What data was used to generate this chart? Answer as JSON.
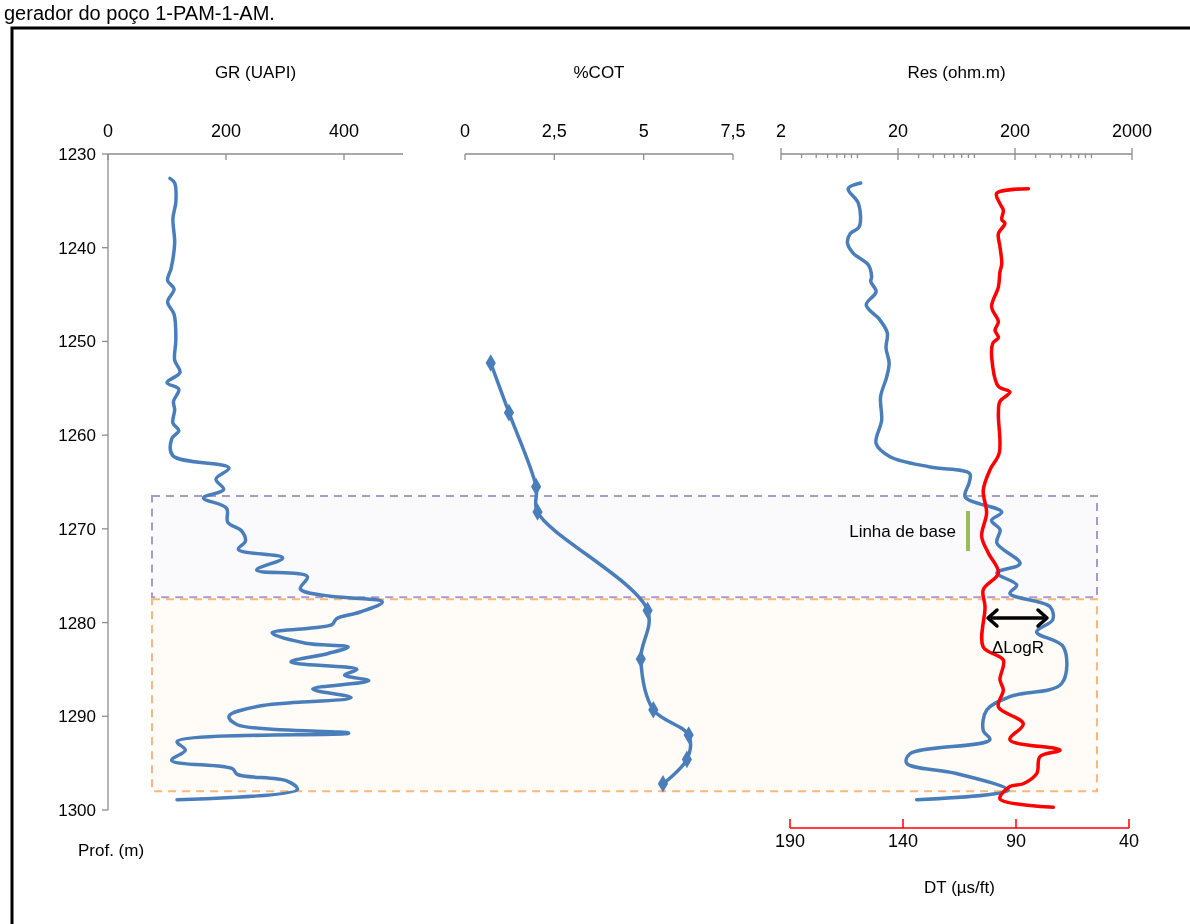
{
  "chart_data": [
    {
      "type": "line",
      "title": "gerador do poço 1-PAM-1-AM.",
      "xlabel": "GR (UAPI)",
      "ylabel": "Prof. (m)",
      "xlim": [
        0,
        500
      ],
      "xticks": [
        0,
        200,
        400
      ],
      "ylim": [
        1300,
        1230
      ],
      "yticks": [
        1230,
        1240,
        1250,
        1260,
        1270,
        1280,
        1290,
        1300
      ],
      "line_style": "solid",
      "series": [
        {
          "color": "#4a7ebb",
          "x": [
            105,
            113,
            115,
            110,
            113,
            107,
            101,
            112,
            101,
            112,
            115,
            113,
            122,
            100,
            120,
            111,
            113,
            110,
            120,
            108,
            110,
            205,
            183,
            196,
            162,
            201,
            203,
            226,
            233,
            221,
            296,
            252,
            338,
            326,
            366,
            465,
            426,
            387,
            380,
            278,
            335,
            407,
            373,
            310,
            422,
            401,
            442,
            347,
            412,
            257,
            205,
            219,
            408,
            117,
            131,
            108,
            211,
            219,
            303,
            321,
            117
          ],
          "values": [
            1232.6,
            1233.1,
            1235.1,
            1236.9,
            1239.5,
            1242.2,
            1243.5,
            1244.4,
            1245.8,
            1247.1,
            1249.8,
            1252.0,
            1253.3,
            1254.4,
            1255.1,
            1256.4,
            1257.3,
            1258.7,
            1259.5,
            1260.4,
            1262.2,
            1263.5,
            1264.7,
            1265.8,
            1266.7,
            1267.8,
            1269.3,
            1270.2,
            1271.3,
            1272.2,
            1273.1,
            1274.4,
            1275.1,
            1276.4,
            1277.1,
            1277.8,
            1278.9,
            1279.6,
            1280.2,
            1281.1,
            1282.2,
            1282.6,
            1283.3,
            1284.2,
            1285.0,
            1285.6,
            1286.2,
            1287.1,
            1288.0,
            1288.9,
            1290.0,
            1290.9,
            1291.8,
            1292.7,
            1293.6,
            1294.7,
            1295.6,
            1296.2,
            1296.9,
            1297.8,
            1298.9
          ]
        }
      ],
      "bands": [
        {
          "axis": "y",
          "from": 1266.5,
          "to": 1277.3,
          "color": "#a99bc9"
        },
        {
          "axis": "y",
          "from": 1277.5,
          "to": 1298.0,
          "color": "#f9b77e"
        }
      ]
    },
    {
      "type": "line",
      "xlabel": "%COT",
      "xlim": [
        0,
        7.5
      ],
      "xticks": [
        0,
        {
          "value": 2.5,
          "label": "2,5"
        },
        5,
        {
          "value": 7.5,
          "label": "7,5"
        }
      ],
      "ylim": [
        1300,
        1230
      ],
      "tick_labels": "x",
      "marker": "diamond",
      "line_style": "solid",
      "series": [
        {
          "color": "#4a7ebb",
          "x": [
            0.72,
            1.23,
            1.99,
            2.03,
            5.11,
            4.92,
            5.27,
            6.26,
            6.21,
            5.54
          ],
          "values": [
            1252.3,
            1257.6,
            1265.5,
            1268.2,
            1278.7,
            1283.9,
            1289.3,
            1292.0,
            1294.6,
            1297.2
          ]
        }
      ]
    },
    {
      "type": "line",
      "xlabel": "Res (ohm.m)",
      "x2label": "DT (µs/ft)",
      "log": "x",
      "xlim": [
        2,
        2000
      ],
      "xticks": [
        2,
        {
          "value": 3,
          "label": null
        },
        {
          "value": 4,
          "label": null
        },
        {
          "value": 5,
          "label": null
        },
        {
          "value": 6,
          "label": null
        },
        {
          "value": 7,
          "label": null
        },
        {
          "value": 8,
          "label": null
        },
        {
          "value": 9,
          "label": null
        },
        20,
        {
          "value": 30,
          "label": null
        },
        {
          "value": 40,
          "label": null
        },
        {
          "value": 50,
          "label": null
        },
        {
          "value": 60,
          "label": null
        },
        {
          "value": 70,
          "label": null
        },
        {
          "value": 80,
          "label": null
        },
        {
          "value": 90,
          "label": null
        },
        200,
        {
          "value": 300,
          "label": null
        },
        {
          "value": 400,
          "label": null
        },
        {
          "value": 500,
          "label": null
        },
        {
          "value": 600,
          "label": null
        },
        {
          "value": 700,
          "label": null
        },
        {
          "value": 800,
          "label": null
        },
        {
          "value": 900,
          "label": null
        },
        2000
      ],
      "x2lim": [
        190,
        40
      ],
      "x2ticks": [
        190,
        140,
        90,
        40
      ],
      "ylim": [
        1300,
        1230
      ],
      "tick_labels": "x",
      "line_style": "solid",
      "series": [
        {
          "color": "#4a7ebb",
          "x": [
            9.6,
            7.5,
            9.2,
            9.3,
            7.8,
            7.4,
            8.3,
            11.1,
            11.9,
            11.7,
            13.0,
            10.7,
            14.0,
            16.2,
            15.8,
            16.8,
            16.0,
            14.2,
            14.5,
            13.0,
            17.1,
            37.6,
            82,
            81,
            75,
            154,
            126,
            149,
            140,
            221,
            140,
            207,
            181,
            398,
            420,
            306,
            518,
            501,
            181,
            115,
            107,
            122,
            25.3,
            23.7,
            63,
            175,
            28.9
          ],
          "values": [
            1233.1,
            1233.7,
            1235.3,
            1237.8,
            1238.5,
            1239.5,
            1240.6,
            1241.8,
            1243.1,
            1243.6,
            1244.7,
            1246.1,
            1247.7,
            1249.1,
            1250.7,
            1252.3,
            1253.8,
            1255.9,
            1258.4,
            1260.9,
            1262.3,
            1263.4,
            1264.1,
            1265.1,
            1266.6,
            1268.2,
            1269.1,
            1270.1,
            1271.5,
            1273.7,
            1274.7,
            1276.0,
            1276.9,
            1278.3,
            1279.7,
            1281.0,
            1282.6,
            1286.5,
            1287.9,
            1289.3,
            1291.5,
            1292.5,
            1294.0,
            1295.0,
            1296.1,
            1297.9,
            1298.9
          ]
        },
        {
          "color": "#ff0000",
          "axis": "x2",
          "x": [
            84.5,
            98.6,
            97.1,
            95.6,
            96.3,
            94.9,
            97.8,
            97.1,
            96.3,
            97.1,
            97.8,
            100.8,
            97.8,
            99.3,
            97.8,
            100.3,
            100.3,
            97.8,
            92.7,
            97.1,
            97.8,
            97.4,
            101.5,
            104.5,
            103.0,
            105.2,
            102.2,
            97.8,
            104.5,
            103.7,
            104.5,
            95.6,
            97.1,
            95.6,
            97.8,
            86.8,
            92.7,
            70.5,
            79.4,
            80.8,
            86.8,
            92.7,
            97.1,
            73.5
          ],
          "values": [
            1233.7,
            1234.2,
            1235.3,
            1236.0,
            1237.0,
            1237.4,
            1238.5,
            1239.9,
            1241.7,
            1242.6,
            1244.2,
            1246.3,
            1247.9,
            1248.8,
            1249.6,
            1250.2,
            1252.7,
            1254.8,
            1255.4,
            1256.4,
            1257.7,
            1261.9,
            1263.7,
            1265.9,
            1268.3,
            1270.8,
            1272.6,
            1274.7,
            1276.5,
            1278.3,
            1282.6,
            1284.0,
            1286.1,
            1287.2,
            1289.0,
            1290.8,
            1292.5,
            1293.6,
            1294.3,
            1296.1,
            1297.2,
            1297.5,
            1298.8,
            1299.7
          ]
        }
      ],
      "annotations": [
        "Linha de base",
        "ΔLogR"
      ]
    }
  ]
}
